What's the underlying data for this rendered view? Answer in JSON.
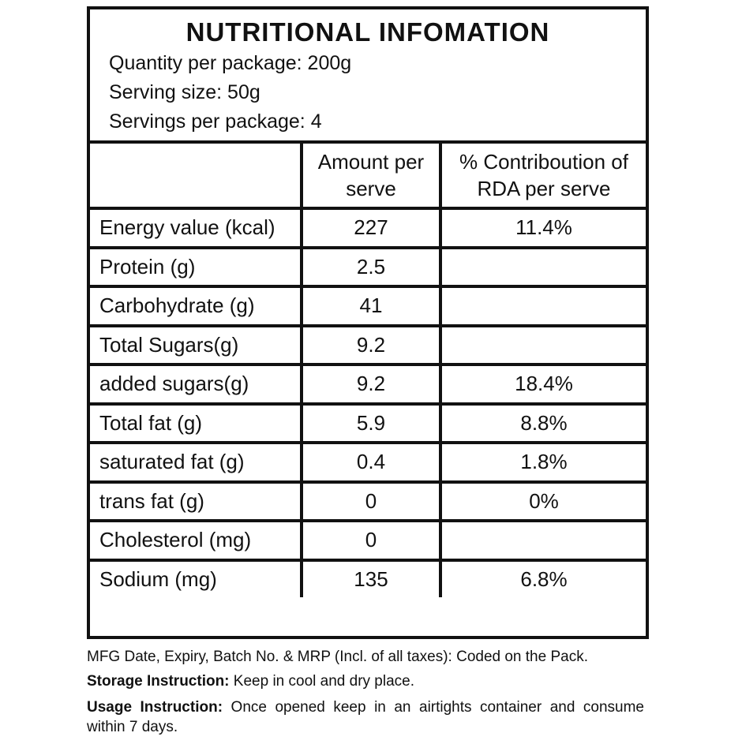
{
  "header": {
    "title": "NUTRITIONAL INFOMATION",
    "lines": [
      "Quantity per package: 200g",
      "Serving size: 50g",
      "Servings per package: 4"
    ]
  },
  "table": {
    "columns": [
      "Amount per serve",
      "% Contriboution of RDA per serve"
    ],
    "rows": [
      {
        "name": "Energy value (kcal)",
        "amount": 227,
        "rda": "11.4%"
      },
      {
        "name": "Protein (g)",
        "amount": 2.5
      },
      {
        "name": "Carbohydrate (g)",
        "amount": 41
      },
      {
        "name": "Total Sugars(g)",
        "amount": 9.2
      },
      {
        "name": "added sugars(g)",
        "amount": 9.2,
        "rda": "18.4%"
      },
      {
        "name": "Total fat (g)",
        "amount": 5.9,
        "rda": "8.8%"
      },
      {
        "name": "saturated fat (g)",
        "amount": 0.4,
        "rda": "1.8%"
      },
      {
        "name": "trans fat (g)",
        "amount": 0,
        "rda": "0%"
      },
      {
        "name": "Cholesterol (mg)",
        "amount": 0
      },
      {
        "name": "Sodium (mg)",
        "amount": 135,
        "rda": "6.8%"
      }
    ]
  },
  "footer": {
    "mfg": "MFG Date, Expiry, Batch No. & MRP (Incl. of all taxes): Coded on the Pack.",
    "storage": {
      "label": "Storage Instruction:",
      "text": "Keep in cool and dry place."
    },
    "usage": {
      "label": "Usage Instruction:",
      "text": "Once opened  keep in  an  airtights  container and consume within 7 days."
    }
  }
}
